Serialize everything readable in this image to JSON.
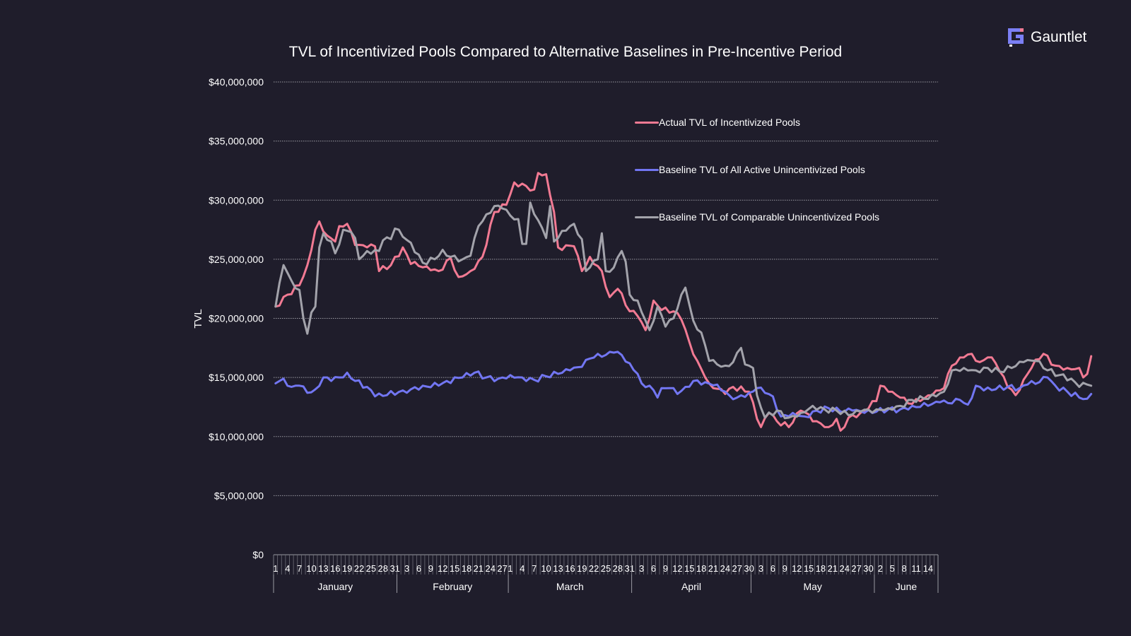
{
  "brand": {
    "name": "Gauntlet",
    "icon": "gauntlet-logo-icon",
    "accent": "#7b7ff5"
  },
  "chart_data": {
    "type": "line",
    "title": "TVL of Incentivized Pools Compared to Alternative Baselines in Pre-Incentive Period",
    "xlabel": "",
    "ylabel": "TVL",
    "ylim": [
      0,
      40000000
    ],
    "y_ticks": [
      "$0",
      "$5,000,000",
      "$10,000,000",
      "$15,000,000",
      "$20,000,000",
      "$25,000,000",
      "$30,000,000",
      "$35,000,000",
      "$40,000,000"
    ],
    "grid": true,
    "legend_position": "top-right",
    "months": [
      {
        "name": "January",
        "days": 31,
        "labels": [
          "1",
          "4",
          "7",
          "10",
          "13",
          "16",
          "19",
          "22",
          "25",
          "28",
          "31"
        ]
      },
      {
        "name": "February",
        "days": 28,
        "labels": [
          "3",
          "6",
          "9",
          "12",
          "15",
          "18",
          "21",
          "24",
          "27"
        ]
      },
      {
        "name": "March",
        "days": 31,
        "labels": [
          "1",
          "4",
          "7",
          "10",
          "13",
          "16",
          "19",
          "22",
          "25",
          "28",
          "31"
        ]
      },
      {
        "name": "April",
        "days": 30,
        "labels": [
          "3",
          "6",
          "9",
          "12",
          "15",
          "18",
          "21",
          "24",
          "27",
          "30"
        ]
      },
      {
        "name": "May",
        "days": 31,
        "labels": [
          "3",
          "6",
          "9",
          "12",
          "15",
          "18",
          "21",
          "24",
          "27",
          "30"
        ]
      },
      {
        "name": "June",
        "days": 16,
        "labels": [
          "2",
          "5",
          "8",
          "11",
          "14"
        ]
      }
    ],
    "series": [
      {
        "name": "Actual TVL of Incentivized Pools",
        "color": "#f27a93",
        "keypoints": [
          [
            1,
            21000000
          ],
          [
            4,
            22000000
          ],
          [
            7,
            22800000
          ],
          [
            9,
            24500000
          ],
          [
            11,
            27500000
          ],
          [
            12,
            28200000
          ],
          [
            14,
            27000000
          ],
          [
            16,
            26500000
          ],
          [
            17,
            27800000
          ],
          [
            19,
            28000000
          ],
          [
            21,
            26200000
          ],
          [
            24,
            26000000
          ],
          [
            26,
            26100000
          ],
          [
            27,
            24000000
          ],
          [
            30,
            24500000
          ],
          [
            33,
            26000000
          ],
          [
            35,
            24600000
          ],
          [
            39,
            24400000
          ],
          [
            42,
            24000000
          ],
          [
            45,
            25100000
          ],
          [
            47,
            23500000
          ],
          [
            50,
            24000000
          ],
          [
            53,
            25200000
          ],
          [
            56,
            29000000
          ],
          [
            59,
            29600000
          ],
          [
            61,
            31500000
          ],
          [
            64,
            31200000
          ],
          [
            66,
            30900000
          ],
          [
            67,
            32300000
          ],
          [
            69,
            32200000
          ],
          [
            71,
            29000000
          ],
          [
            72,
            26000000
          ],
          [
            76,
            26100000
          ],
          [
            78,
            24000000
          ],
          [
            80,
            25200000
          ],
          [
            83,
            24000000
          ],
          [
            85,
            21800000
          ],
          [
            87,
            22500000
          ],
          [
            90,
            20600000
          ],
          [
            92,
            20200000
          ],
          [
            94,
            19000000
          ],
          [
            96,
            21500000
          ],
          [
            98,
            20700000
          ],
          [
            101,
            20600000
          ],
          [
            103,
            19900000
          ],
          [
            105,
            18000000
          ],
          [
            107,
            16400000
          ],
          [
            110,
            14500000
          ],
          [
            114,
            13600000
          ],
          [
            116,
            14200000
          ],
          [
            120,
            13800000
          ],
          [
            122,
            11500000
          ],
          [
            123,
            10800000
          ],
          [
            125,
            12000000
          ],
          [
            127,
            11300000
          ],
          [
            130,
            10800000
          ],
          [
            133,
            12200000
          ],
          [
            137,
            11300000
          ],
          [
            140,
            10800000
          ],
          [
            142,
            11500000
          ],
          [
            143,
            10500000
          ],
          [
            145,
            11600000
          ],
          [
            148,
            12000000
          ],
          [
            152,
            13000000
          ],
          [
            153,
            14300000
          ],
          [
            155,
            13800000
          ],
          [
            158,
            13300000
          ],
          [
            160,
            12800000
          ],
          [
            163,
            13000000
          ],
          [
            166,
            13500000
          ],
          [
            169,
            14100000
          ],
          [
            171,
            16000000
          ],
          [
            174,
            16700000
          ],
          [
            176,
            17000000
          ],
          [
            178,
            16300000
          ],
          [
            180,
            16700000
          ],
          [
            182,
            16200000
          ],
          [
            185,
            14200000
          ],
          [
            187,
            13500000
          ],
          [
            189,
            14800000
          ],
          [
            192,
            16500000
          ],
          [
            194,
            17000000
          ],
          [
            197,
            16000000
          ],
          [
            200,
            15800000
          ],
          [
            203,
            15800000
          ],
          [
            204,
            15000000
          ],
          [
            205,
            15300000
          ],
          [
            206,
            16800000
          ]
        ]
      },
      {
        "name": "Baseline TVL of All Active Unincentivized Pools",
        "color": "#7276f2",
        "keypoints": [
          [
            1,
            14500000
          ],
          [
            3,
            14900000
          ],
          [
            5,
            14200000
          ],
          [
            7,
            14300000
          ],
          [
            9,
            13700000
          ],
          [
            11,
            14000000
          ],
          [
            13,
            15000000
          ],
          [
            15,
            14700000
          ],
          [
            17,
            15000000
          ],
          [
            19,
            15400000
          ],
          [
            21,
            14700000
          ],
          [
            24,
            14200000
          ],
          [
            26,
            13400000
          ],
          [
            29,
            13500000
          ],
          [
            33,
            13900000
          ],
          [
            35,
            14000000
          ],
          [
            38,
            14300000
          ],
          [
            42,
            14300000
          ],
          [
            44,
            14700000
          ],
          [
            48,
            15000000
          ],
          [
            51,
            15400000
          ],
          [
            54,
            15000000
          ],
          [
            57,
            14900000
          ],
          [
            60,
            15200000
          ],
          [
            63,
            15000000
          ],
          [
            66,
            14800000
          ],
          [
            69,
            15100000
          ],
          [
            72,
            15300000
          ],
          [
            75,
            15600000
          ],
          [
            78,
            15900000
          ],
          [
            80,
            16600000
          ],
          [
            82,
            17000000
          ],
          [
            84,
            16900000
          ],
          [
            86,
            17100000
          ],
          [
            88,
            16900000
          ],
          [
            90,
            16200000
          ],
          [
            92,
            15300000
          ],
          [
            93,
            14500000
          ],
          [
            95,
            14300000
          ],
          [
            97,
            13300000
          ],
          [
            98,
            14100000
          ],
          [
            100,
            14100000
          ],
          [
            102,
            13600000
          ],
          [
            104,
            14200000
          ],
          [
            106,
            14700000
          ],
          [
            109,
            14600000
          ],
          [
            112,
            14400000
          ],
          [
            115,
            13500000
          ],
          [
            117,
            13300000
          ],
          [
            120,
            13700000
          ],
          [
            122,
            14100000
          ],
          [
            124,
            13700000
          ],
          [
            126,
            13400000
          ],
          [
            128,
            11700000
          ],
          [
            131,
            12000000
          ],
          [
            134,
            11700000
          ],
          [
            137,
            12200000
          ],
          [
            140,
            12400000
          ],
          [
            143,
            12100000
          ],
          [
            146,
            12200000
          ],
          [
            149,
            12000000
          ],
          [
            152,
            12100000
          ],
          [
            155,
            12300000
          ],
          [
            158,
            12300000
          ],
          [
            161,
            12600000
          ],
          [
            165,
            12600000
          ],
          [
            168,
            12900000
          ],
          [
            171,
            12800000
          ],
          [
            173,
            13100000
          ],
          [
            175,
            12700000
          ],
          [
            177,
            14300000
          ],
          [
            179,
            13900000
          ],
          [
            182,
            14000000
          ],
          [
            185,
            14200000
          ],
          [
            188,
            14100000
          ],
          [
            190,
            14400000
          ],
          [
            193,
            14600000
          ],
          [
            195,
            15000000
          ],
          [
            197,
            14300000
          ],
          [
            200,
            13800000
          ],
          [
            203,
            13300000
          ],
          [
            205,
            13200000
          ],
          [
            206,
            13600000
          ]
        ]
      },
      {
        "name": "Baseline TVL of Comparable Unincentivized Pools",
        "color": "#a3a3ab",
        "keypoints": [
          [
            1,
            21000000
          ],
          [
            3,
            24500000
          ],
          [
            5,
            23200000
          ],
          [
            7,
            22400000
          ],
          [
            8,
            20000000
          ],
          [
            9,
            18700000
          ],
          [
            10,
            20500000
          ],
          [
            11,
            21000000
          ],
          [
            12,
            26000000
          ],
          [
            13,
            27200000
          ],
          [
            15,
            26500000
          ],
          [
            16,
            25500000
          ],
          [
            18,
            27500000
          ],
          [
            20,
            27300000
          ],
          [
            21,
            26800000
          ],
          [
            22,
            25000000
          ],
          [
            24,
            25700000
          ],
          [
            27,
            25700000
          ],
          [
            28,
            26600000
          ],
          [
            30,
            26700000
          ],
          [
            31,
            27600000
          ],
          [
            33,
            26900000
          ],
          [
            35,
            26400000
          ],
          [
            38,
            24700000
          ],
          [
            41,
            25000000
          ],
          [
            43,
            25800000
          ],
          [
            45,
            25200000
          ],
          [
            48,
            25000000
          ],
          [
            50,
            25300000
          ],
          [
            52,
            27800000
          ],
          [
            54,
            28800000
          ],
          [
            56,
            29500000
          ],
          [
            58,
            29300000
          ],
          [
            60,
            28700000
          ],
          [
            62,
            28400000
          ],
          [
            63,
            26300000
          ],
          [
            64,
            26300000
          ],
          [
            65,
            29800000
          ],
          [
            67,
            28300000
          ],
          [
            69,
            26800000
          ],
          [
            70,
            29500000
          ],
          [
            71,
            26500000
          ],
          [
            73,
            27400000
          ],
          [
            76,
            28000000
          ],
          [
            78,
            26700000
          ],
          [
            79,
            24000000
          ],
          [
            80,
            24300000
          ],
          [
            82,
            25000000
          ],
          [
            83,
            27200000
          ],
          [
            84,
            24000000
          ],
          [
            86,
            24300000
          ],
          [
            88,
            25700000
          ],
          [
            89,
            24800000
          ],
          [
            90,
            22000000
          ],
          [
            92,
            21500000
          ],
          [
            94,
            19800000
          ],
          [
            95,
            19000000
          ],
          [
            97,
            21000000
          ],
          [
            99,
            19300000
          ],
          [
            101,
            20000000
          ],
          [
            103,
            22000000
          ],
          [
            104,
            22600000
          ],
          [
            106,
            19800000
          ],
          [
            108,
            18800000
          ],
          [
            110,
            16400000
          ],
          [
            112,
            16100000
          ],
          [
            114,
            16000000
          ],
          [
            116,
            16300000
          ],
          [
            118,
            17500000
          ],
          [
            119,
            16100000
          ],
          [
            121,
            15800000
          ],
          [
            122,
            13500000
          ],
          [
            124,
            11600000
          ],
          [
            127,
            12200000
          ],
          [
            130,
            11600000
          ],
          [
            133,
            12000000
          ],
          [
            136,
            12600000
          ],
          [
            139,
            12300000
          ],
          [
            142,
            12200000
          ],
          [
            145,
            11800000
          ],
          [
            148,
            12100000
          ],
          [
            152,
            12300000
          ],
          [
            155,
            12400000
          ],
          [
            158,
            12600000
          ],
          [
            161,
            13100000
          ],
          [
            164,
            13200000
          ],
          [
            167,
            13400000
          ],
          [
            169,
            13800000
          ],
          [
            171,
            15600000
          ],
          [
            174,
            15800000
          ],
          [
            177,
            15600000
          ],
          [
            180,
            15800000
          ],
          [
            183,
            15500000
          ],
          [
            186,
            15800000
          ],
          [
            189,
            16300000
          ],
          [
            192,
            16400000
          ],
          [
            195,
            15600000
          ],
          [
            198,
            15200000
          ],
          [
            201,
            14900000
          ],
          [
            203,
            14200000
          ],
          [
            205,
            14400000
          ],
          [
            206,
            14300000
          ]
        ]
      }
    ]
  }
}
